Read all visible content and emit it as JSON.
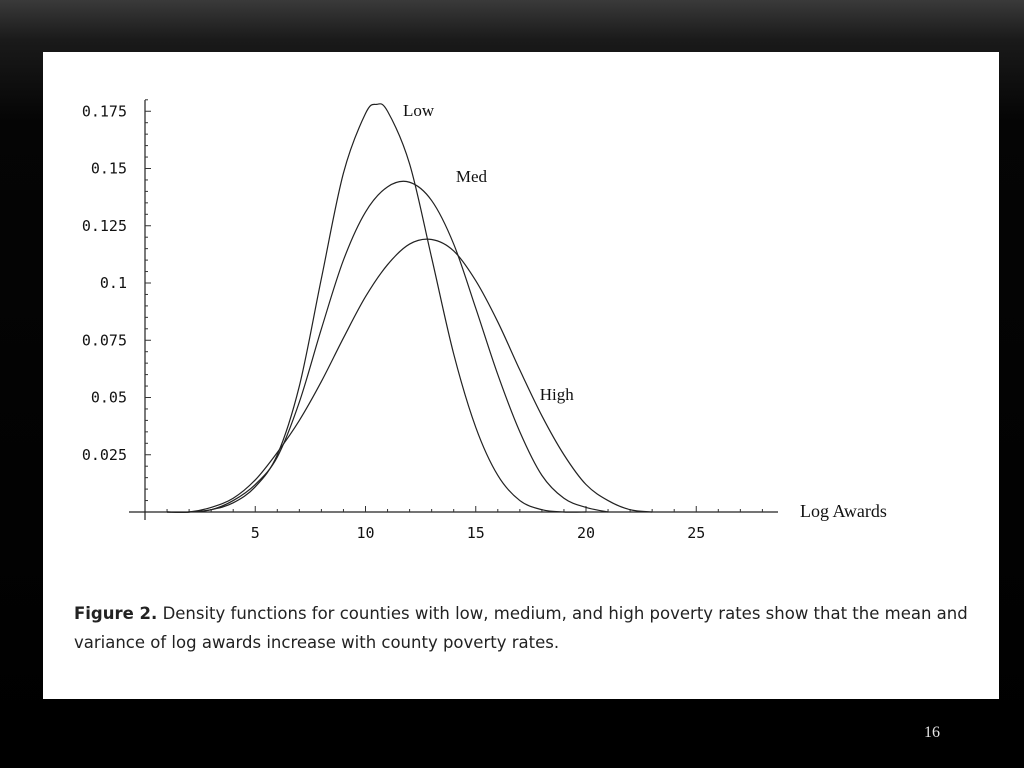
{
  "slide": {
    "number": "16"
  },
  "caption": {
    "label": "Figure 2.",
    "text": "Density functions for counties with low, medium, and high poverty rates show that the mean and variance of log awards increase with county poverty rates."
  },
  "chart_data": {
    "type": "line",
    "title": "",
    "xlabel": "Log Awards",
    "ylabel": "",
    "xlim": [
      0,
      28.5
    ],
    "ylim": [
      0,
      0.18
    ],
    "x_ticks": [
      5,
      10,
      15,
      20,
      25
    ],
    "y_ticks": [
      0.025,
      0.05,
      0.075,
      0.1,
      0.125,
      0.15,
      0.175
    ],
    "y_tick_labels": [
      "0.025",
      "0.05",
      "0.075",
      "0.1",
      "0.125",
      "0.15",
      "0.175"
    ],
    "grid": false,
    "legend": "none",
    "series": [
      {
        "name": "Low",
        "x": [
          1,
          2,
          3,
          4,
          5,
          6,
          7,
          8,
          9,
          10,
          10.5,
          11,
          12,
          13,
          14,
          15,
          16,
          17,
          18,
          19,
          20
        ],
        "y": [
          0.0,
          0.0,
          0.001,
          0.004,
          0.011,
          0.025,
          0.055,
          0.102,
          0.148,
          0.174,
          0.178,
          0.175,
          0.152,
          0.111,
          0.069,
          0.037,
          0.016,
          0.005,
          0.001,
          0.0,
          0.0
        ]
      },
      {
        "name": "Med",
        "x": [
          1,
          2,
          3,
          4,
          5,
          6,
          7,
          8,
          9,
          10,
          11,
          12,
          13,
          14,
          15,
          16,
          17,
          18,
          19,
          20,
          21
        ],
        "y": [
          0.0,
          0.0,
          0.001,
          0.005,
          0.012,
          0.024,
          0.048,
          0.08,
          0.11,
          0.131,
          0.142,
          0.144,
          0.136,
          0.117,
          0.089,
          0.06,
          0.035,
          0.016,
          0.006,
          0.002,
          0.0
        ]
      },
      {
        "name": "High",
        "x": [
          1,
          2,
          3,
          4,
          5,
          6,
          7,
          8,
          9,
          10,
          11,
          12,
          13,
          14,
          15,
          16,
          17,
          18,
          19,
          20,
          21,
          22,
          23
        ],
        "y": [
          0.0,
          0.0,
          0.002,
          0.006,
          0.014,
          0.026,
          0.04,
          0.057,
          0.076,
          0.094,
          0.108,
          0.117,
          0.119,
          0.114,
          0.101,
          0.083,
          0.062,
          0.042,
          0.025,
          0.012,
          0.005,
          0.001,
          0.0
        ]
      }
    ],
    "curve_labels": [
      {
        "series": "Low",
        "text": "Low",
        "x": 11.7,
        "y": 0.173
      },
      {
        "series": "Med",
        "text": "Med",
        "x": 14.1,
        "y": 0.144
      },
      {
        "series": "High",
        "text": "High",
        "x": 17.9,
        "y": 0.049
      }
    ]
  }
}
